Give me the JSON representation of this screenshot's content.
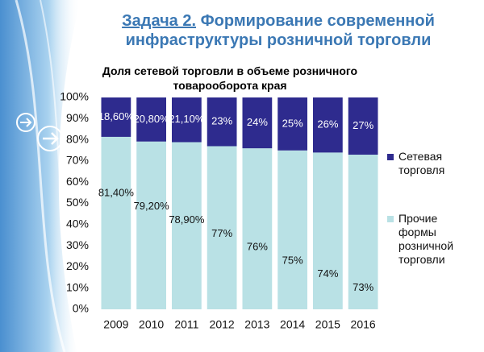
{
  "slide": {
    "heading_label": "Задача 2.",
    "heading": "Формирование современной инфраструктуры розничной торговли"
  },
  "chart_data": {
    "type": "stacked-bar",
    "title": "Доля сетевой торговли в объеме розничного товарооборота края",
    "categories": [
      "2009",
      "2010",
      "2011",
      "2012",
      "2013",
      "2014",
      "2015",
      "2016"
    ],
    "series": [
      {
        "name": "Прочие формы розничной торговли",
        "color": "#b9e1e5",
        "values": [
          81.4,
          79.2,
          78.9,
          77,
          76,
          75,
          74,
          73
        ],
        "value_labels": [
          "81,40%",
          "79,20%",
          "78,90%",
          "77%",
          "76%",
          "75%",
          "74%",
          "73%"
        ]
      },
      {
        "name": "Сетевая торговля",
        "color": "#2e2b8e",
        "values": [
          18.6,
          20.8,
          21.1,
          23,
          24,
          25,
          26,
          27
        ],
        "value_labels": [
          "18,60%",
          "20,80%",
          "21,10%",
          "23%",
          "24%",
          "25%",
          "26%",
          "27%"
        ]
      }
    ],
    "ylim": [
      0,
      100
    ],
    "yticks": [
      {
        "value": 0,
        "label": "0%"
      },
      {
        "value": 10,
        "label": "10%"
      },
      {
        "value": 20,
        "label": "20%"
      },
      {
        "value": 30,
        "label": "30%"
      },
      {
        "value": 40,
        "label": "40%"
      },
      {
        "value": 50,
        "label": "50%"
      },
      {
        "value": 60,
        "label": "60%"
      },
      {
        "value": 70,
        "label": "70%"
      },
      {
        "value": 80,
        "label": "80%"
      },
      {
        "value": 90,
        "label": "90%"
      },
      {
        "value": 100,
        "label": "100%"
      }
    ],
    "legend": "right"
  }
}
